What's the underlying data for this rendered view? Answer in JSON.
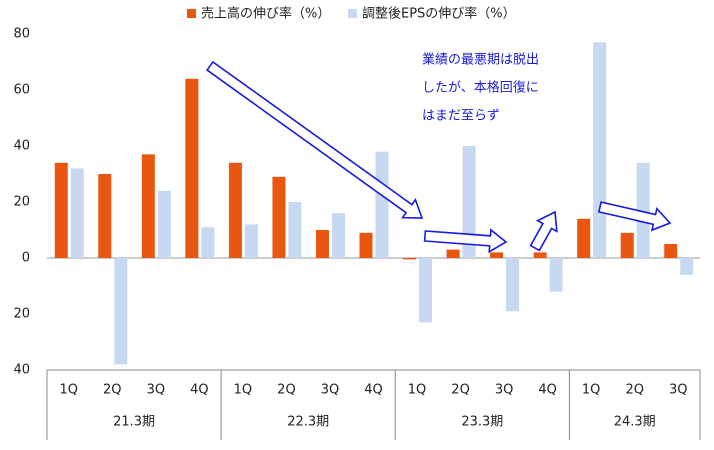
{
  "chart_data": {
    "type": "bar",
    "categories": [
      "1Q",
      "2Q",
      "3Q",
      "4Q",
      "1Q",
      "2Q",
      "3Q",
      "4Q",
      "1Q",
      "2Q",
      "3Q",
      "4Q",
      "1Q",
      "2Q",
      "3Q"
    ],
    "groups": [
      "21.3期",
      "22.3期",
      "23.3期",
      "24.3期"
    ],
    "series": [
      {
        "name": "売上高の伸び率（%）",
        "color": "#e8560f",
        "values": [
          34,
          30,
          37,
          64,
          34,
          29,
          10,
          9,
          -0.5,
          3,
          2,
          2,
          14,
          9,
          5
        ]
      },
      {
        "name": "調整後EPSの伸び率（%）",
        "color": "#c6d9f1",
        "values": [
          32,
          -38,
          24,
          11,
          12,
          20,
          16,
          38,
          -23,
          40,
          -19,
          -12,
          77,
          34,
          -6
        ]
      }
    ],
    "ylim": [
      -40,
      80
    ],
    "yticks": [
      {
        "value": -40,
        "label": "40"
      },
      {
        "value": -20,
        "label": "20"
      },
      0,
      20,
      40,
      60,
      80
    ],
    "annotation": [
      "業績の最悪期は脱出",
      "したが、本格回復に",
      "はまだ至らず"
    ]
  }
}
